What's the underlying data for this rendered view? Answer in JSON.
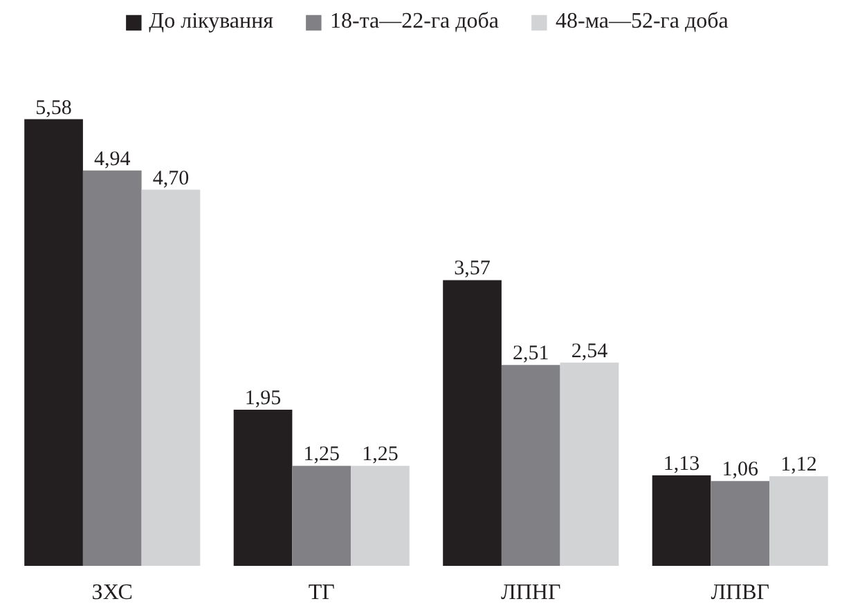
{
  "chart_data": {
    "type": "bar",
    "categories": [
      "ЗХС",
      "ТГ",
      "ЛПНГ",
      "ЛПВГ"
    ],
    "series": [
      {
        "name": "До лікування",
        "color": "#231f20",
        "values": [
          5.58,
          1.95,
          3.57,
          1.13
        ],
        "value_labels": [
          "5,58",
          "1,95",
          "3,57",
          "1,13"
        ]
      },
      {
        "name": "18-та—22-га доба",
        "color": "#808085",
        "values": [
          4.94,
          1.25,
          2.51,
          1.06
        ],
        "value_labels": [
          "4,94",
          "1,25",
          "2,51",
          "1,06"
        ]
      },
      {
        "name": "48-ма—52-га доба",
        "color": "#d2d3d5",
        "values": [
          4.7,
          1.25,
          2.54,
          1.12
        ],
        "value_labels": [
          "4,70",
          "1,25",
          "2,54",
          "1,12"
        ]
      }
    ],
    "legend": "top",
    "grid": false
  }
}
